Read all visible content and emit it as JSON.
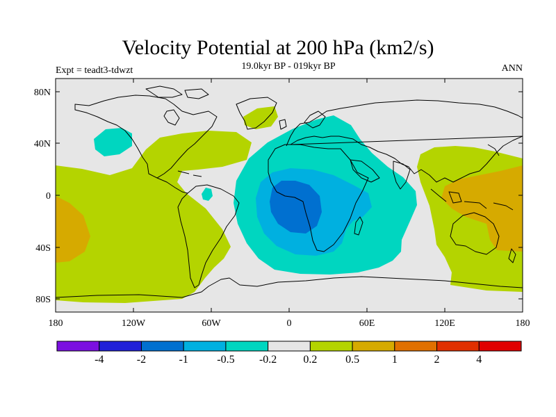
{
  "title": "Velocity Potential at 200 hPa (km2/s)",
  "subtitle": "19.0kyr BP - 019kyr BP",
  "left_label": "Expt = teadt3-tdwzt",
  "right_label": "ANN",
  "map": {
    "projection": "cylindrical-equidistant",
    "lon_range": [
      -180,
      180
    ],
    "lat_range": [
      -90,
      90
    ],
    "x_ticks": [
      "180",
      "120W",
      "60W",
      "0",
      "60E",
      "120E",
      "180"
    ],
    "y_ticks": [
      "80N",
      "40N",
      "0",
      "40S",
      "80S"
    ],
    "background_color": "#e6e6e6",
    "coastline_color": "#000000"
  },
  "colorbar": {
    "colors": [
      "#7b10e0",
      "#2020d8",
      "#0070d0",
      "#00b0e0",
      "#00d6c0",
      "#e6e6e6",
      "#b4d400",
      "#d6aa00",
      "#e07000",
      "#e03000",
      "#e00000"
    ],
    "labels": [
      "-4",
      "-2",
      "-1",
      "-0.5",
      "-0.2",
      "0.2",
      "0.5",
      "1",
      "2",
      "4"
    ]
  },
  "chart_data": {
    "type": "heatmap",
    "variable": "Velocity Potential at 200 hPa",
    "units": "km2/s",
    "levels": [
      -4,
      -2,
      -1,
      -0.5,
      -0.2,
      0.2,
      0.5,
      1,
      2,
      4
    ],
    "regions": [
      {
        "label": "-0.5 to -0.2",
        "center_lon": 20,
        "center_lat": 5,
        "extent": "Africa and tropical Atlantic, broad"
      },
      {
        "label": "-1 to -0.5",
        "center_lon": 10,
        "center_lat": -5,
        "extent": "central/southern Africa and tropical Atlantic"
      },
      {
        "label": "-2 to -1",
        "center_lon": 5,
        "center_lat": -10,
        "extent": "Gulf of Guinea and western Congo"
      },
      {
        "label": "-0.5 to -0.2",
        "center_lon": -145,
        "center_lat": 40,
        "extent": "NE Pacific, small"
      },
      {
        "label": "-0.5 to -0.2",
        "center_lon": -65,
        "center_lat": 0,
        "extent": "Amazon, small"
      },
      {
        "label": "0.2 to 0.5",
        "center_lon": -130,
        "center_lat": -20,
        "extent": "eastern Pacific and Americas"
      },
      {
        "label": "0.2 to 0.5",
        "center_lon": 145,
        "center_lat": 0,
        "extent": "Maritime Continent and western Pacific"
      },
      {
        "label": "0.5 to 1",
        "center_lon": -170,
        "center_lat": -25,
        "extent": "central Pacific, small"
      },
      {
        "label": "0.5 to 1",
        "center_lon": 140,
        "center_lat": -10,
        "extent": "Indonesia/northern Australia"
      }
    ]
  }
}
